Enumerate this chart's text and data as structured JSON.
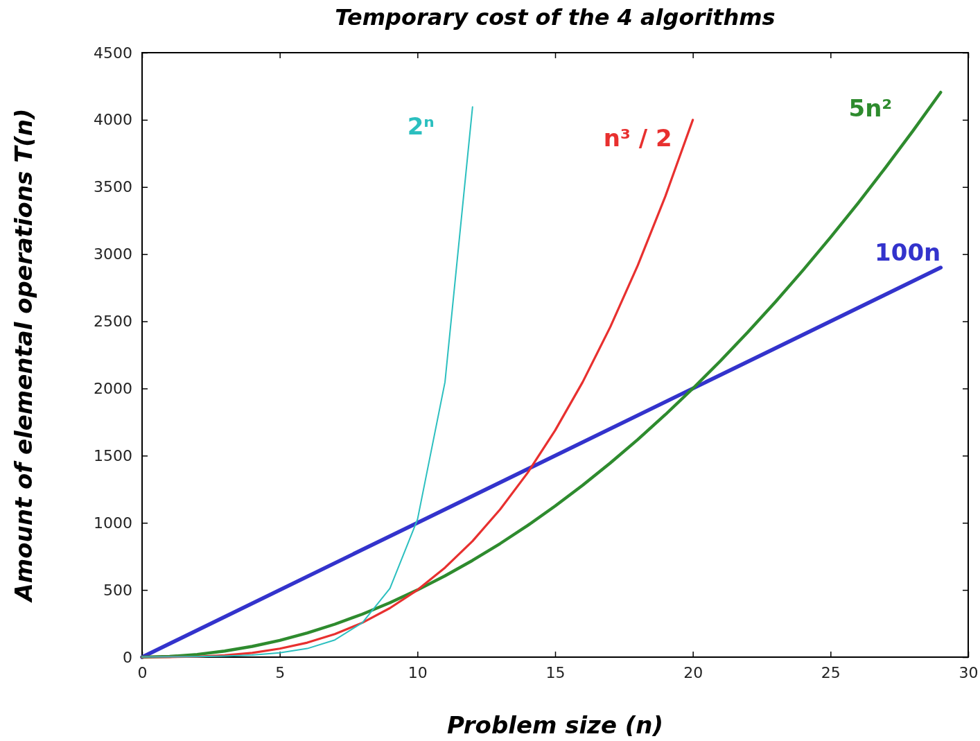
{
  "chart_data": {
    "type": "line",
    "title": "Temporary cost of the 4 algorithms",
    "xlabel": "Problem size (n)",
    "ylabel": "Amount of elemental operations T(n)",
    "xlim": [
      0,
      30
    ],
    "xticks": [
      0,
      5,
      10,
      15,
      20,
      25,
      30
    ],
    "ylim": [
      0,
      4500
    ],
    "yticks": [
      0,
      500,
      1000,
      1500,
      2000,
      2500,
      3000,
      3500,
      4000,
      4500
    ],
    "grid": false,
    "series": [
      {
        "name": "2ⁿ",
        "color": "#2bbfbf",
        "x": [
          0,
          1,
          2,
          3,
          4,
          5,
          6,
          7,
          8,
          9,
          10,
          11,
          12
        ],
        "values": [
          1,
          2,
          4,
          8,
          16,
          32,
          64,
          128,
          256,
          512,
          1024,
          2048,
          4096
        ]
      },
      {
        "name": "n³ / 2",
        "color": "#e8302f",
        "x": [
          0,
          1,
          2,
          3,
          4,
          5,
          6,
          7,
          8,
          9,
          10,
          11,
          12,
          13,
          14,
          15,
          16,
          17,
          18,
          19,
          20
        ],
        "values": [
          0,
          1,
          4,
          14,
          32,
          63,
          108,
          172,
          256,
          365,
          500,
          666,
          864,
          1099,
          1372,
          1688,
          2048,
          2457,
          2916,
          3430,
          4000
        ]
      },
      {
        "name": "5n²",
        "color": "#2e8b2e",
        "x": [
          0,
          1,
          2,
          3,
          4,
          5,
          6,
          7,
          8,
          9,
          10,
          11,
          12,
          13,
          14,
          15,
          16,
          17,
          18,
          19,
          20,
          21,
          22,
          23,
          24,
          25,
          26,
          27,
          28,
          29
        ],
        "values": [
          0,
          5,
          20,
          45,
          80,
          125,
          180,
          245,
          320,
          405,
          500,
          605,
          720,
          845,
          980,
          1125,
          1280,
          1445,
          1620,
          1805,
          2000,
          2205,
          2420,
          2645,
          2880,
          3125,
          3380,
          3645,
          3920,
          4205
        ]
      },
      {
        "name": "100n",
        "color": "#3333cc",
        "x": [
          0,
          29
        ],
        "values": [
          0,
          2900
        ]
      }
    ]
  }
}
